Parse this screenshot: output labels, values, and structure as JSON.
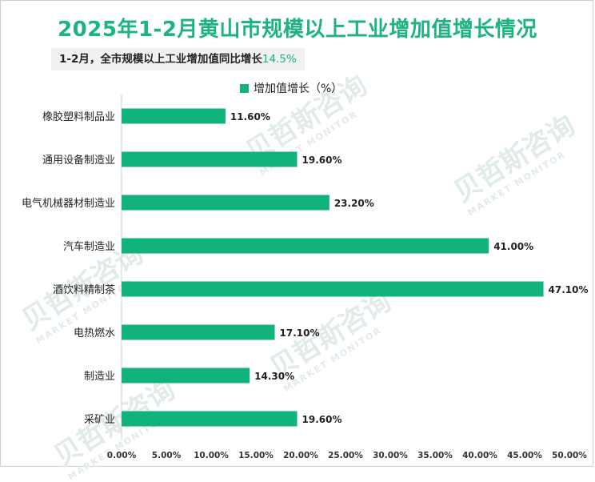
{
  "title": "2025年1-2月黄山市规模以上工业增加值增长情况",
  "subtitle": {
    "prefix": "1-2月，全市规模以上工业增加值同比增长",
    "value": "14.5%"
  },
  "legend_label": "增加值增长（%）",
  "watermark": {
    "text": "贝哲斯咨询",
    "sub": "MARKET MONITOR"
  },
  "colors": {
    "bar": "#12b27e",
    "title": "#1db37f"
  },
  "chart_data": {
    "type": "bar",
    "orientation": "horizontal",
    "title": "2025年1-2月黄山市规模以上工业增加值增长情况",
    "categories": [
      "橡胶塑料制品业",
      "通用设备制造业",
      "电气机械器材制造业",
      "汽车制造业",
      "酒饮料精制茶",
      "电热燃水",
      "制造业",
      "采矿业"
    ],
    "series": [
      {
        "name": "增加值增长（%）",
        "values": [
          11.6,
          19.6,
          23.2,
          41.0,
          47.1,
          17.1,
          14.3,
          19.6
        ]
      }
    ],
    "value_labels": [
      "11.60%",
      "19.60%",
      "23.20%",
      "41.00%",
      "47.10%",
      "17.10%",
      "14.30%",
      "19.60%"
    ],
    "xlim": [
      0,
      50
    ],
    "x_ticks": [
      "0.00%",
      "5.00%",
      "10.00%",
      "15.00%",
      "20.00%",
      "25.00%",
      "30.00%",
      "35.00%",
      "40.00%",
      "45.00%",
      "50.00%"
    ],
    "legend_position": "top-center",
    "grid": false
  }
}
